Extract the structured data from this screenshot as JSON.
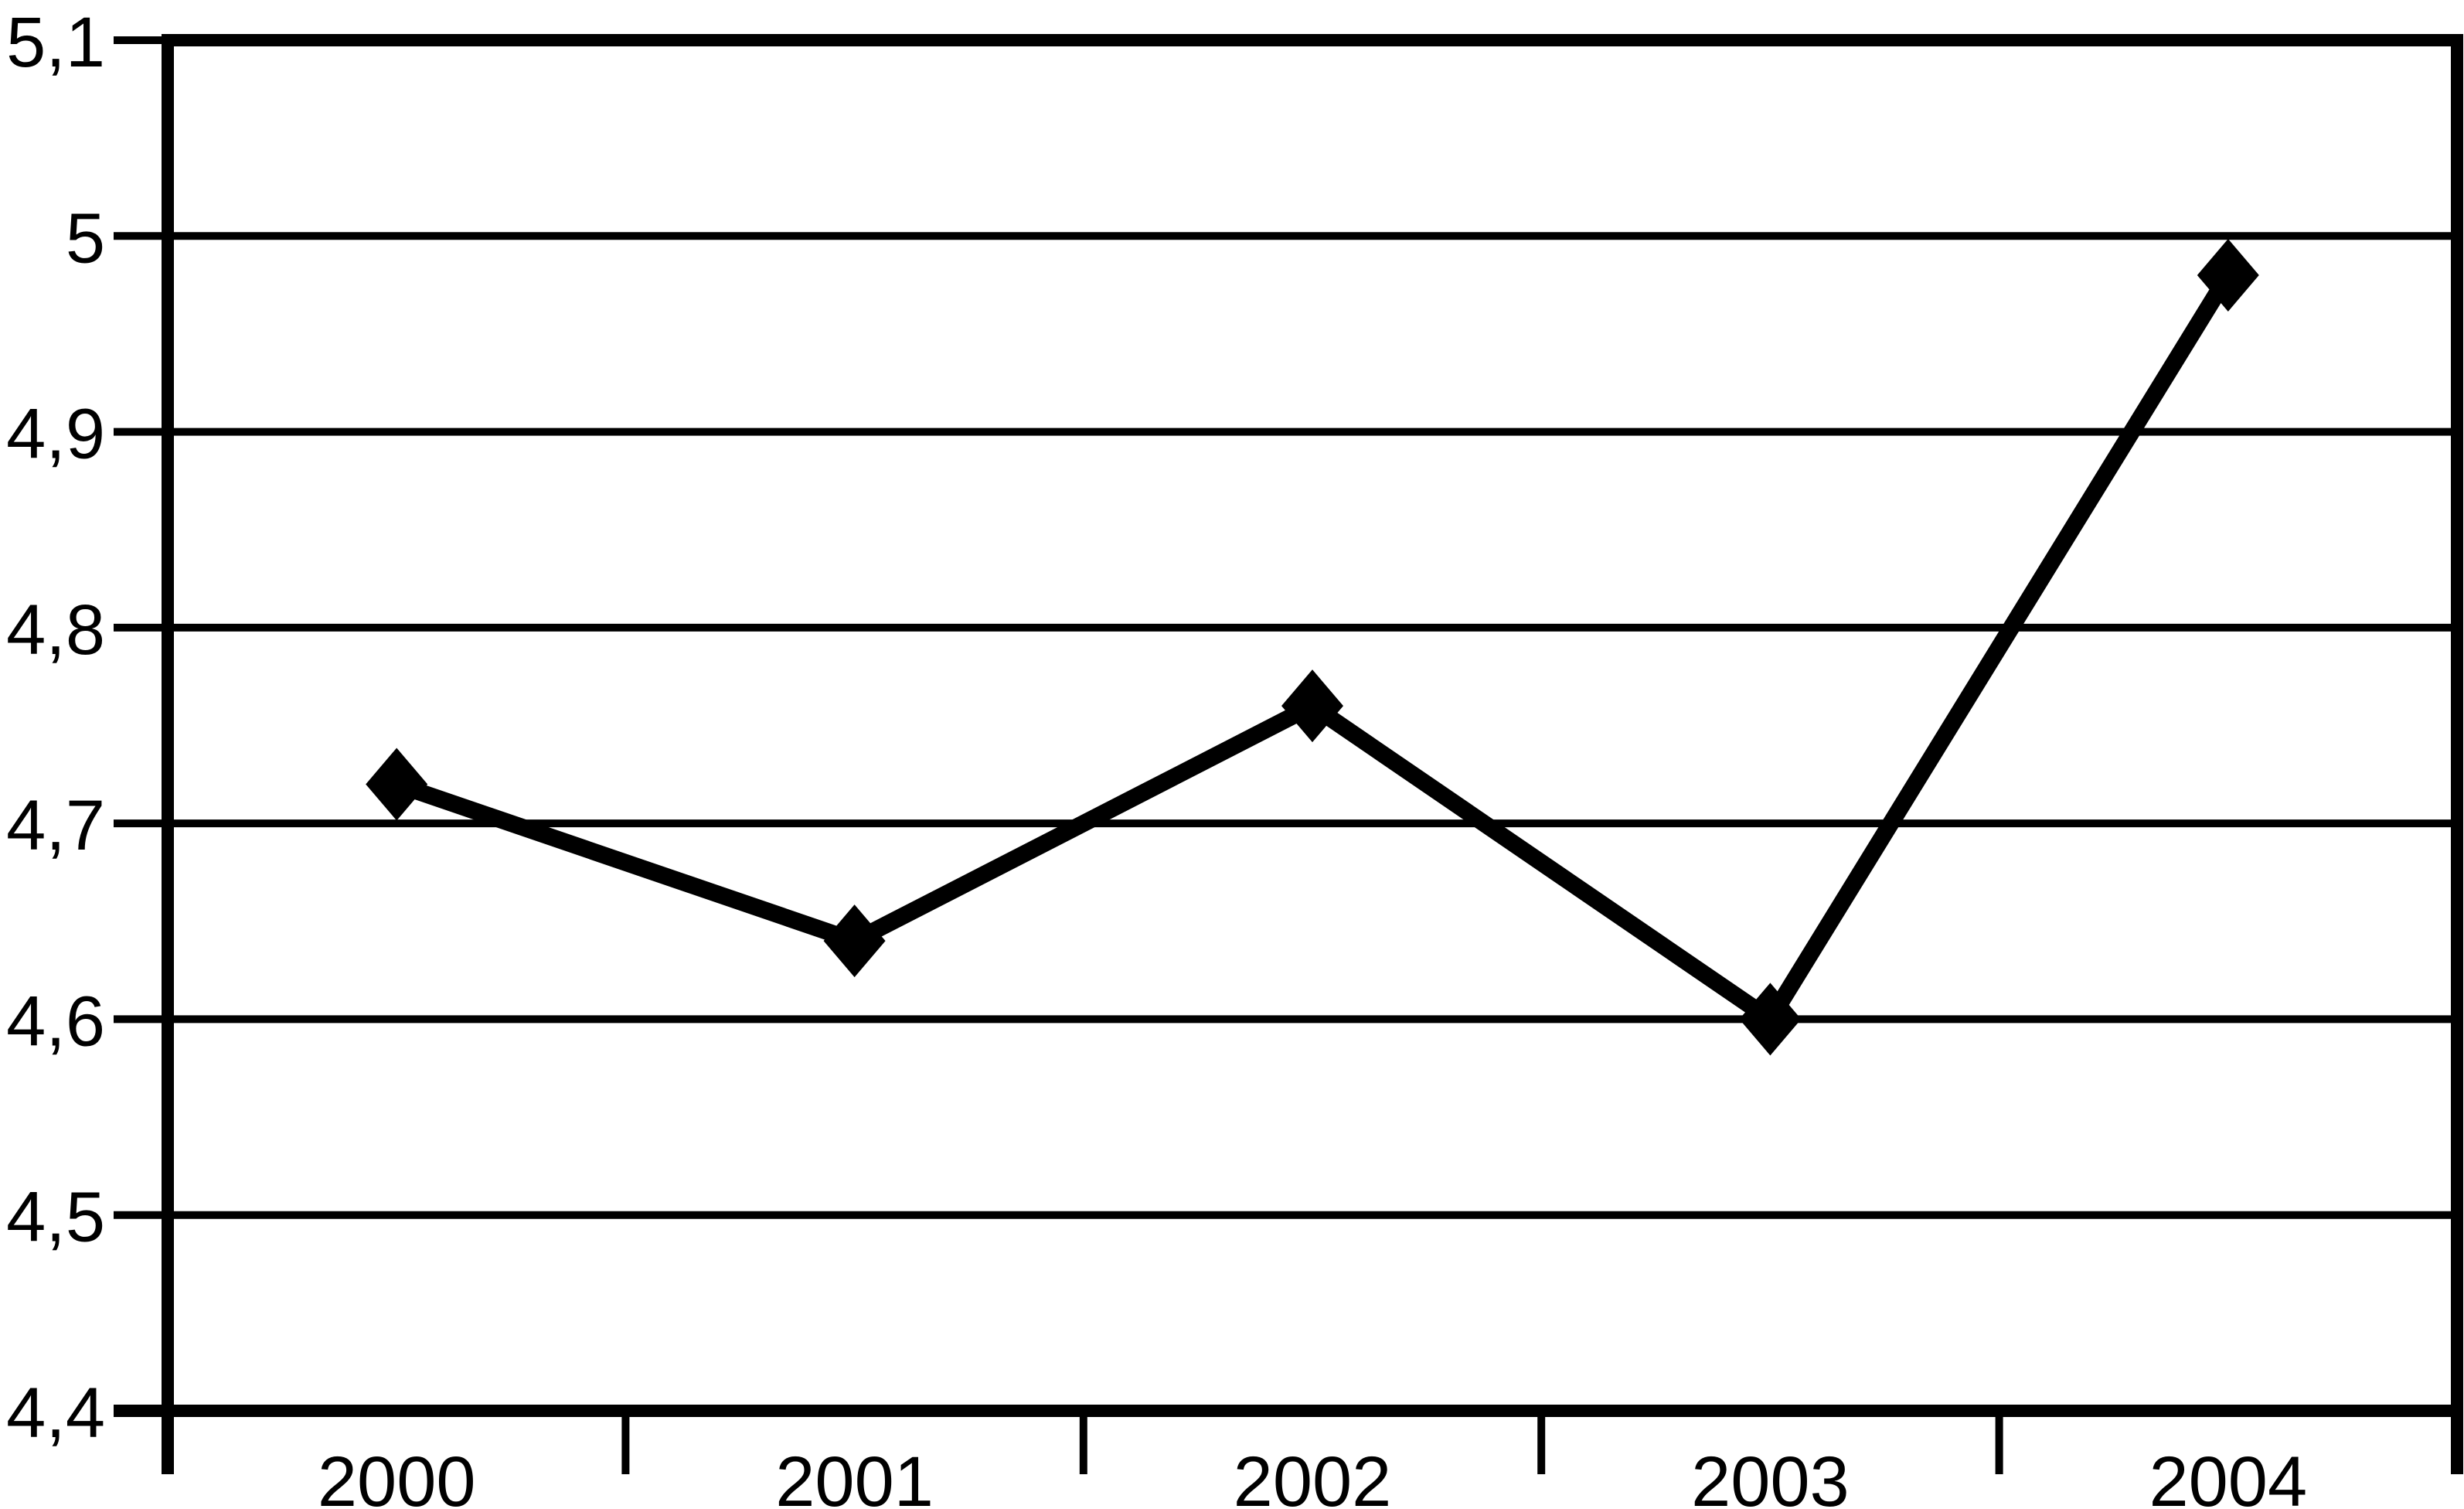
{
  "figure": {
    "background_color": "#ffffff",
    "foreground_color": "#000000"
  },
  "chart_data": {
    "type": "line",
    "title": "",
    "xlabel": "",
    "ylabel": "",
    "categories": [
      "2000",
      "2001",
      "2002",
      "2003",
      "2004"
    ],
    "series": [
      {
        "name": "",
        "values": [
          4.72,
          4.64,
          4.76,
          4.6,
          4.98
        ]
      }
    ],
    "ylim": [
      4.4,
      5.1
    ],
    "y_ticks": [
      4.4,
      4.5,
      4.6,
      4.7,
      4.8,
      4.9,
      5.0,
      5.1
    ],
    "y_tick_labels": [
      "4,4",
      "4,5",
      "4,6",
      "4,7",
      "4,8",
      "4,9",
      "5",
      "5,1"
    ],
    "x_tick_labels": [
      "2000",
      "2001",
      "2002",
      "2003",
      "2004"
    ],
    "decimal_separator": ",",
    "grid": true,
    "legend": false,
    "marker": "diamond",
    "line_color": "#000000",
    "marker_color": "#000000",
    "grid_color": "#000000",
    "axis_color": "#000000"
  }
}
